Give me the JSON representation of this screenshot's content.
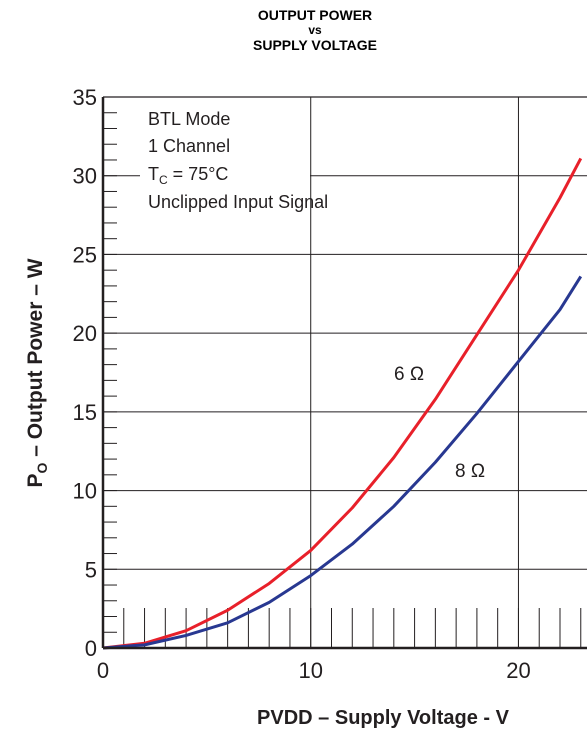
{
  "chart_data": {
    "type": "line",
    "title": [
      "OUTPUT POWER",
      "vs",
      "SUPPLY VOLTAGE"
    ],
    "xlabel": "PVDD – Supply Voltage - V",
    "ylabel_main": "P",
    "ylabel_sub": "O",
    "ylabel_rest": " – Output Power – W",
    "xlim": [
      0,
      23.3
    ],
    "ylim": [
      0,
      35
    ],
    "x_ticks": [
      0,
      10,
      20
    ],
    "y_ticks": [
      0,
      5,
      10,
      15,
      20,
      25,
      30,
      35
    ],
    "x_tick_labels": [
      "0",
      "10",
      "20"
    ],
    "y_tick_labels": [
      "0",
      "5",
      "10",
      "15",
      "20",
      "25",
      "30",
      "35"
    ],
    "grid": true,
    "annotation": {
      "line1": "BTL Mode",
      "line2": "1 Channel",
      "line3_main": "T",
      "line3_sub": "C",
      "line3_rest": " = 75°C",
      "line4": "Unclipped Input Signal"
    },
    "series": [
      {
        "name": "6 Ω",
        "color": "#e8202a",
        "x": [
          0,
          2,
          4,
          6,
          8,
          10,
          12,
          14,
          16,
          18,
          20,
          22,
          23
        ],
        "y": [
          0,
          0.3,
          1.1,
          2.4,
          4.1,
          6.2,
          8.9,
          12.1,
          15.8,
          19.9,
          24.0,
          28.6,
          31.1
        ]
      },
      {
        "name": "8 Ω",
        "color": "#283891",
        "x": [
          0,
          2,
          4,
          6,
          8,
          10,
          12,
          14,
          16,
          18,
          20,
          22,
          23
        ],
        "y": [
          0,
          0.2,
          0.8,
          1.6,
          2.9,
          4.6,
          6.6,
          9.0,
          11.8,
          14.9,
          18.2,
          21.5,
          23.6
        ]
      }
    ]
  }
}
